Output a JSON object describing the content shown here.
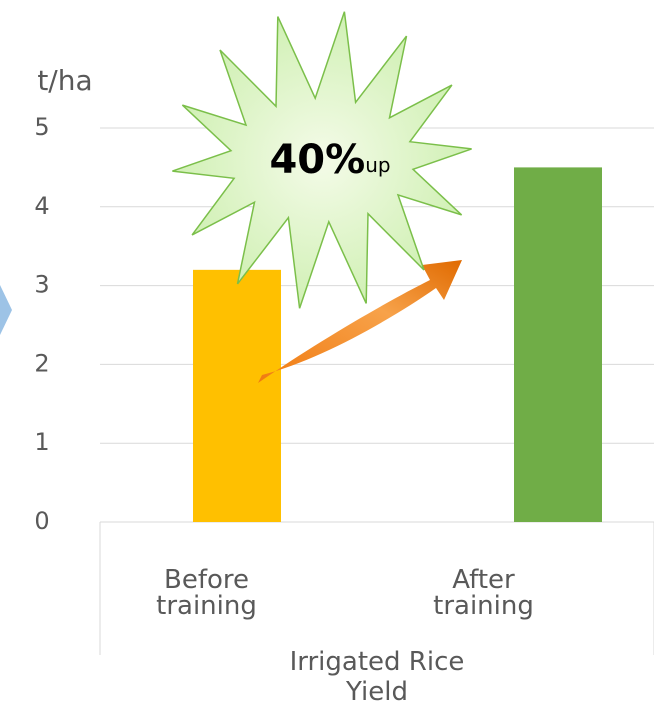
{
  "chart_data": {
    "type": "bar",
    "y_label": "t/ha",
    "categories": [
      "Before training",
      "After training"
    ],
    "group_label": "Irrigated Rice Yield",
    "values": [
      3.2,
      4.5
    ],
    "colors": [
      "#FFC000",
      "#70AD47"
    ],
    "ylim": [
      0,
      5
    ],
    "yticks": [
      0,
      1,
      2,
      3,
      4,
      5
    ],
    "grid": true,
    "annotations": [
      "40%",
      "up"
    ]
  }
}
